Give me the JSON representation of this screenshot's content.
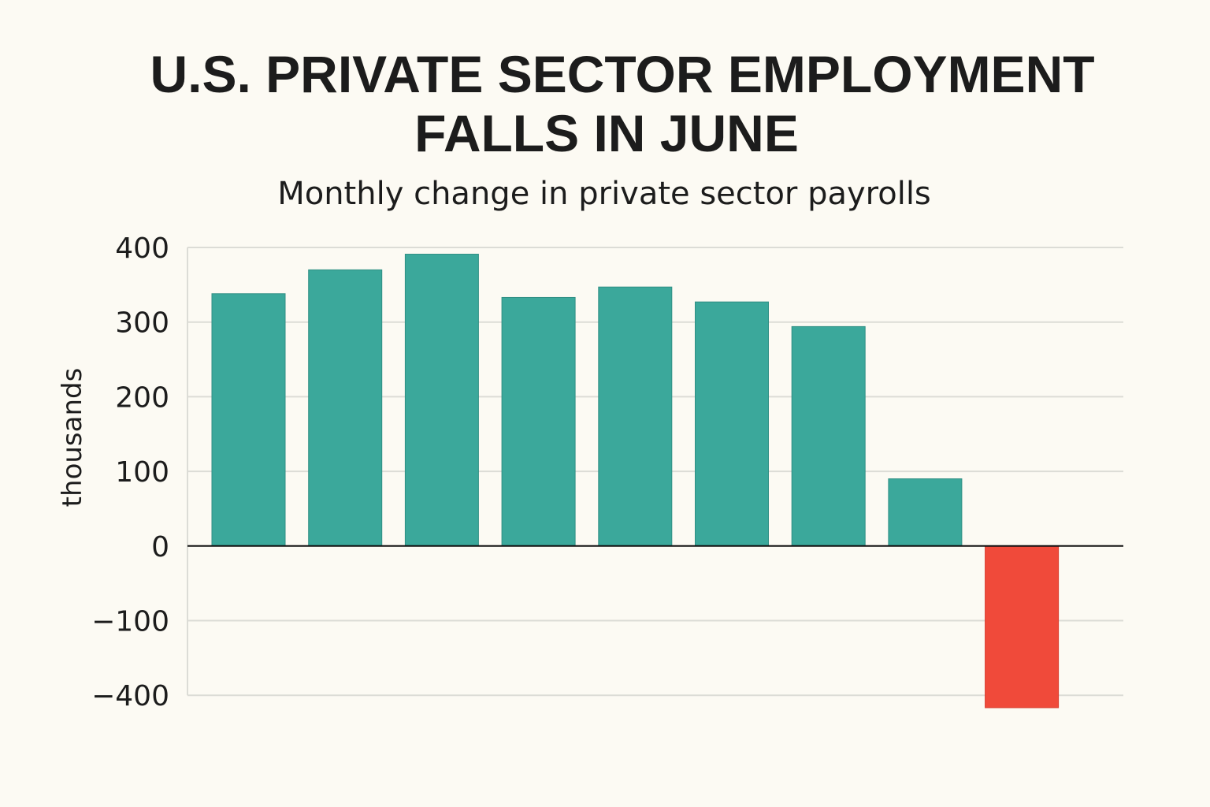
{
  "chart_data": {
    "type": "bar",
    "title": [
      "U.S. PRIVATE SECTOR EMPLOYMENT",
      "FALLS IN JUNE"
    ],
    "subtitle": "Monthly change in private sector payrolls",
    "xlabel": "",
    "ylabel": "thousands",
    "yticks": [
      400,
      300,
      200,
      100,
      0,
      -100,
      -400
    ],
    "ytick_labels": [
      "400",
      "300",
      "200",
      "100",
      "0",
      "−100",
      "−400"
    ],
    "grid": true,
    "values": [
      338,
      370,
      391,
      333,
      347,
      327,
      294,
      90,
      -450
    ],
    "colors": {
      "positive": "#3ba89b",
      "negative": "#f04a3a",
      "background": "#fcfaf3",
      "grid": "#dcdcd6",
      "zero_line": "#111111"
    }
  }
}
